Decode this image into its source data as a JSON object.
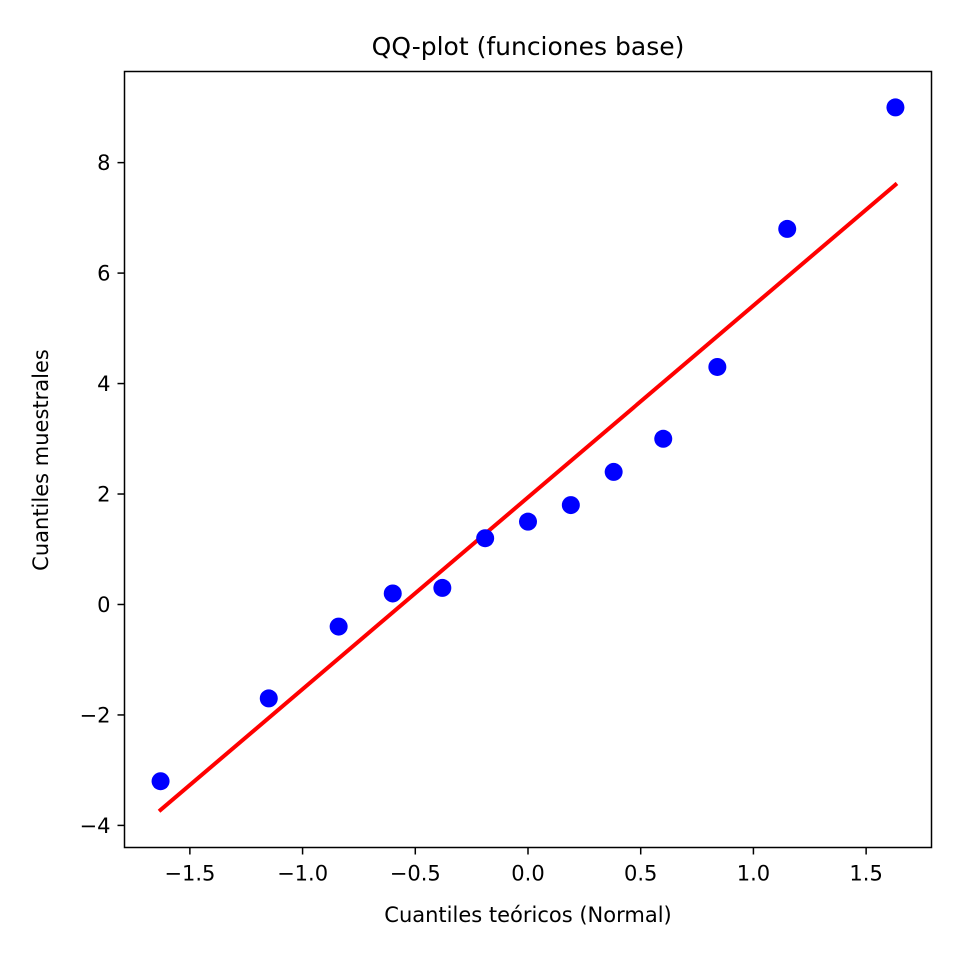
{
  "chart_data": {
    "type": "scatter",
    "title": "QQ-plot (funciones base)",
    "xlabel": "Cuantiles teóricos (Normal)",
    "ylabel": "Cuantiles muestrales",
    "xlim": [
      -1.79,
      1.79
    ],
    "ylim": [
      -4.4,
      9.65
    ],
    "xticks": [
      -1.5,
      -1.0,
      -0.5,
      0.0,
      0.5,
      1.0,
      1.5
    ],
    "xtick_labels": [
      "−1.5",
      "−1.0",
      "−0.5",
      "0.0",
      "0.5",
      "1.0",
      "1.5"
    ],
    "yticks": [
      -4,
      -2,
      0,
      2,
      4,
      6,
      8
    ],
    "ytick_labels": [
      "−4",
      "−2",
      "0",
      "2",
      "4",
      "6",
      "8"
    ],
    "grid": false,
    "series": [
      {
        "kind": "scatter",
        "color": "#0000ff",
        "x": [
          -1.63,
          -1.15,
          -0.84,
          -0.6,
          -0.38,
          -0.19,
          0.0,
          0.19,
          0.38,
          0.6,
          0.84,
          1.15,
          1.63
        ],
        "y": [
          -3.2,
          -1.7,
          -0.4,
          0.2,
          0.3,
          1.2,
          1.5,
          1.8,
          2.4,
          3.0,
          4.3,
          6.8,
          9.0
        ]
      },
      {
        "kind": "line",
        "color": "#ff0000",
        "x": [
          -1.63,
          1.63
        ],
        "y": [
          -3.72,
          7.6
        ]
      }
    ]
  }
}
